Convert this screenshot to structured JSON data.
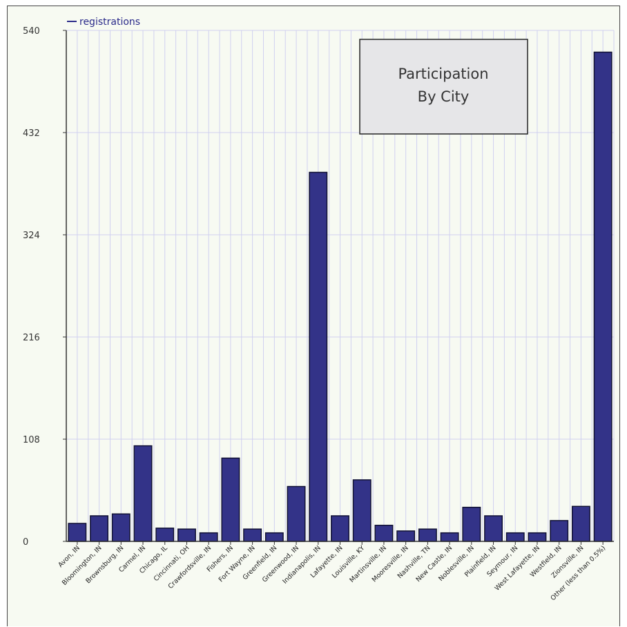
{
  "chart_data": {
    "type": "bar",
    "title": "Participation By City",
    "title_lines": [
      "Participation",
      "By City"
    ],
    "legend": [
      {
        "name": "registrations",
        "color": "#2a2a8a"
      }
    ],
    "categories": [
      "Avon, IN",
      "Bloomington, IN",
      "Brownsburg, IN",
      "Carmel, IN",
      "Chicago, IL",
      "Cincinnati, OH",
      "Crawfordsville, IN",
      "Fishers, IN",
      "Fort Wayne, IN",
      "Greenfield, IN",
      "Greenwood, IN",
      "Indianapolis, IN",
      "Lafayette, IN",
      "Louisville, KY",
      "Martinsville, IN",
      "Mooresville, IN",
      "Nashville, TN",
      "New Castle, IN",
      "Noblesville, IN",
      "Plainfield, IN",
      "Seymour, IN",
      "West Lafayette, IN",
      "Westfield, IN",
      "Zionsville, IN",
      "Other (less than 0.5%)"
    ],
    "series": [
      {
        "name": "registrations",
        "values": [
          19,
          27,
          29,
          101,
          14,
          13,
          9,
          88,
          13,
          9,
          58,
          390,
          27,
          65,
          17,
          11,
          13,
          9,
          36,
          27,
          9,
          9,
          22,
          37,
          517
        ]
      }
    ],
    "ylim": [
      0,
      540
    ],
    "yticks": [
      0,
      108,
      216,
      324,
      432,
      540
    ],
    "ytick_labels": [
      "0",
      "108",
      "216",
      "324",
      "432",
      "540"
    ],
    "grid": true,
    "legend_position": "top-left",
    "colors": {
      "bar_fill": "#333388",
      "bar_stroke": "#111133",
      "grid": "#d0d0f0",
      "background": "#f7faf2",
      "title_box": "#e6e6e8"
    }
  }
}
